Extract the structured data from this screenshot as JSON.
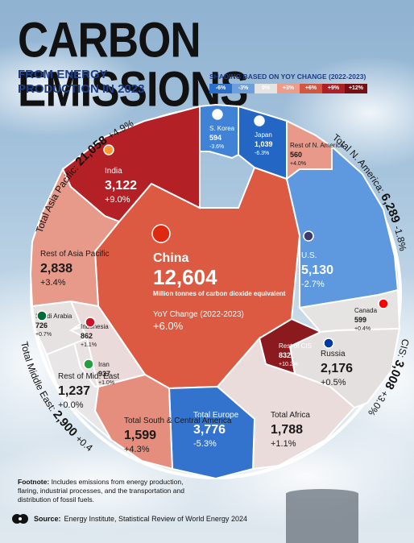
{
  "header": {
    "title": "CARBON EMISSIONS",
    "subtitle": "FROM ENERGY PRODUCTION IN 2023"
  },
  "legend": {
    "title": "SHADING BASED ON YOY CHANGE (2022-2023)",
    "stops": [
      {
        "label": "-6%",
        "color": "#2a6fc9"
      },
      {
        "label": "-3%",
        "color": "#6d9fdc"
      },
      {
        "label": "0%",
        "color": "#e4e4e4"
      },
      {
        "label": "+3%",
        "color": "#ee9c8a"
      },
      {
        "label": "+6%",
        "color": "#d45641"
      },
      {
        "label": "+9%",
        "color": "#ad2025"
      },
      {
        "label": "+12%",
        "color": "#7a0d14"
      }
    ]
  },
  "chart_data": {
    "type": "voronoi treemap",
    "unit": "Million tonnes of carbon dioxide equivalent",
    "change_label": "YoY Change (2022-2023)",
    "totals": [
      {
        "name": "Total Asia Pacific:",
        "value": "21,058",
        "change": "+4.9%"
      },
      {
        "name": "Total N. America:",
        "value": "6,289",
        "change": "-1.8%"
      },
      {
        "name": "CIS:",
        "value": "3,008",
        "change": "+3.0%"
      },
      {
        "name": "Total Middle East:",
        "value": "2,900",
        "change": "+0.4%"
      }
    ],
    "cells": [
      {
        "id": "china",
        "name": "China",
        "value": "12,604",
        "change": "+6.0%",
        "color": "#db5a41"
      },
      {
        "id": "india",
        "name": "India",
        "value": "3,122",
        "change": "+9.0%",
        "color": "#b32025"
      },
      {
        "id": "skorea",
        "name": "S. Korea",
        "value": "594",
        "change": "-3.6%",
        "color": "#3f82d6"
      },
      {
        "id": "japan",
        "name": "Japan",
        "value": "1,039",
        "change": "-6.3%",
        "color": "#2466c4"
      },
      {
        "id": "rest_na",
        "name": "Rest of N. America",
        "value": "560",
        "change": "+4.0%",
        "color": "#e8998a"
      },
      {
        "id": "us",
        "name": "U.S.",
        "value": "5,130",
        "change": "-2.7%",
        "color": "#5e99df"
      },
      {
        "id": "canada",
        "name": "Canada",
        "value": "599",
        "change": "+0.4%",
        "color": "#e6e3e3"
      },
      {
        "id": "russia",
        "name": "Russia",
        "value": "2,176",
        "change": "+0.5%",
        "color": "#e5e0e0"
      },
      {
        "id": "rest_cis",
        "name": "Rest of CIS",
        "value": "832",
        "change": "+10.2%",
        "color": "#8b1a1f"
      },
      {
        "id": "africa",
        "name": "Total Africa",
        "value": "1,788",
        "change": "+1.1%",
        "color": "#ebdcdc"
      },
      {
        "id": "europe",
        "name": "Total Europe",
        "value": "3,776",
        "change": "-5.3%",
        "color": "#3473cd"
      },
      {
        "id": "sca",
        "name": "Total South & Central America",
        "value": "1,599",
        "change": "+4.3%",
        "color": "#e58e7e"
      },
      {
        "id": "rest_me",
        "name": "Rest of Mid. East",
        "value": "1,237",
        "change": "+0.0%",
        "color": "#e8e6e6"
      },
      {
        "id": "iran",
        "name": "Iran",
        "value": "937",
        "change": "+1.0%",
        "color": "#e8e2e2"
      },
      {
        "id": "saudi",
        "name": "Saudi Arabia",
        "value": "726",
        "change": "+0.7%",
        "color": "#e6e2e2"
      },
      {
        "id": "indonesia",
        "name": "Indonesia",
        "value": "862",
        "change": "+1.1%",
        "color": "#eadada"
      },
      {
        "id": "rest_ap",
        "name": "Rest of Asia Pacific",
        "value": "2,838",
        "change": "+3.4%",
        "color": "#e79a89"
      }
    ]
  },
  "footnote": {
    "label": "Footnote:",
    "text": "Includes emissions from energy production, flaring, industrial processes, and the transportation and distribution of fossil fuels."
  },
  "source": {
    "label": "Source:",
    "text": "Energy Institute, Statistical Review of World Energy 2024"
  }
}
